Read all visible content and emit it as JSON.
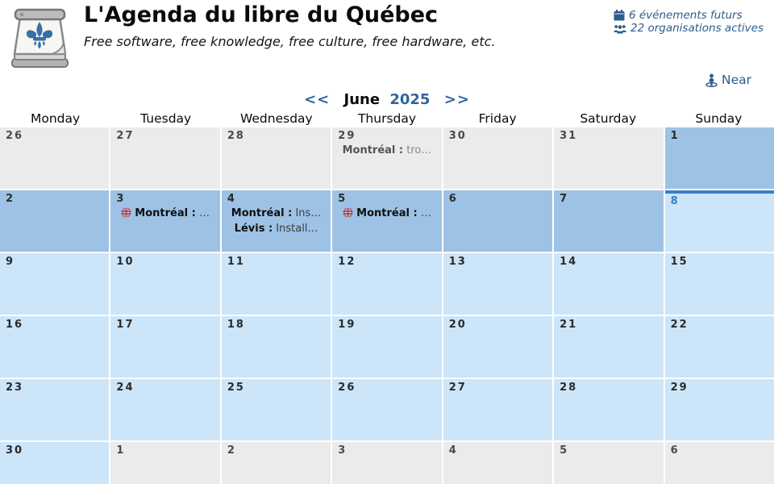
{
  "header": {
    "title": "L'Agenda du libre du Québec",
    "subtitle": "Free software, free knowledge, free culture, free hardware, etc.",
    "logo_icon": "calendar-fleur-de-lis-logo",
    "stats": [
      {
        "icon": "calendar-icon",
        "label": "6 événements futurs"
      },
      {
        "icon": "people-icon",
        "label": "22 organisations actives"
      }
    ]
  },
  "toolbar": {
    "near_label": "Near",
    "near_icon": "person-location-icon"
  },
  "calendar": {
    "nav": {
      "prev_label": "<<",
      "month_label": "June",
      "year_label": "2025",
      "next_label": ">>"
    },
    "weekdays": [
      "Monday",
      "Tuesday",
      "Wednesday",
      "Thursday",
      "Friday",
      "Saturday",
      "Sunday"
    ],
    "weeks": [
      [
        {
          "day": "26",
          "state": "other",
          "events": []
        },
        {
          "day": "27",
          "state": "other",
          "events": []
        },
        {
          "day": "28",
          "state": "other",
          "events": []
        },
        {
          "day": "29",
          "state": "other",
          "events": [
            {
              "city": "Montréal",
              "text": "tro…",
              "globe": false
            }
          ]
        },
        {
          "day": "30",
          "state": "other",
          "events": []
        },
        {
          "day": "31",
          "state": "other",
          "events": []
        },
        {
          "day": "1",
          "state": "past",
          "events": []
        }
      ],
      [
        {
          "day": "2",
          "state": "past",
          "events": []
        },
        {
          "day": "3",
          "state": "past",
          "events": [
            {
              "city": "Montréal",
              "text": "…",
              "globe": true
            }
          ]
        },
        {
          "day": "4",
          "state": "past",
          "events": [
            {
              "city": "Montréal",
              "text": "Ins…",
              "globe": false
            },
            {
              "city": "Lévis",
              "text": "Install…",
              "globe": false
            }
          ]
        },
        {
          "day": "5",
          "state": "past",
          "events": [
            {
              "city": "Montréal",
              "text": "…",
              "globe": true
            }
          ]
        },
        {
          "day": "6",
          "state": "past",
          "events": []
        },
        {
          "day": "7",
          "state": "past",
          "events": []
        },
        {
          "day": "8",
          "state": "today",
          "events": []
        }
      ],
      [
        {
          "day": "9",
          "state": "future",
          "events": []
        },
        {
          "day": "10",
          "state": "future",
          "events": []
        },
        {
          "day": "11",
          "state": "future",
          "events": []
        },
        {
          "day": "12",
          "state": "future",
          "events": []
        },
        {
          "day": "13",
          "state": "future",
          "events": []
        },
        {
          "day": "14",
          "state": "future",
          "events": []
        },
        {
          "day": "15",
          "state": "future",
          "events": []
        }
      ],
      [
        {
          "day": "16",
          "state": "future",
          "events": []
        },
        {
          "day": "17",
          "state": "future",
          "events": []
        },
        {
          "day": "18",
          "state": "future",
          "events": []
        },
        {
          "day": "19",
          "state": "future",
          "events": []
        },
        {
          "day": "20",
          "state": "future",
          "events": []
        },
        {
          "day": "21",
          "state": "future",
          "events": []
        },
        {
          "day": "22",
          "state": "future",
          "events": []
        }
      ],
      [
        {
          "day": "23",
          "state": "future",
          "events": []
        },
        {
          "day": "24",
          "state": "future",
          "events": []
        },
        {
          "day": "25",
          "state": "future",
          "events": []
        },
        {
          "day": "26",
          "state": "future",
          "events": []
        },
        {
          "day": "27",
          "state": "future",
          "events": []
        },
        {
          "day": "28",
          "state": "future",
          "events": []
        },
        {
          "day": "29",
          "state": "future",
          "events": []
        }
      ],
      [
        {
          "day": "30",
          "state": "future",
          "events": []
        },
        {
          "day": "1",
          "state": "other",
          "events": []
        },
        {
          "day": "2",
          "state": "other",
          "events": []
        },
        {
          "day": "3",
          "state": "other",
          "events": []
        },
        {
          "day": "4",
          "state": "other",
          "events": []
        },
        {
          "day": "5",
          "state": "other",
          "events": []
        },
        {
          "day": "6",
          "state": "other",
          "events": []
        }
      ]
    ]
  },
  "colors": {
    "accent_blue": "#2c5d8c",
    "link_blue": "#31659c",
    "today_blue": "#3d7dca",
    "past_day_bg": "#9dc2e5",
    "future_day_bg": "#cce5f9",
    "other_month_bg": "#ebebeb",
    "globe_red": "#d32525"
  }
}
